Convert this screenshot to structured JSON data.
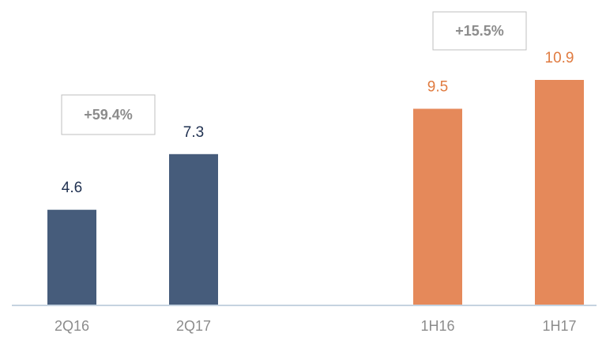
{
  "chart_data": {
    "type": "bar",
    "categories": [
      "2Q16",
      "2Q17",
      "1H16",
      "1H17"
    ],
    "values": [
      4.6,
      7.3,
      9.5,
      10.9
    ],
    "colors": [
      "#465c7b",
      "#465c7b",
      "#e5895a",
      "#e5895a"
    ],
    "label_colors": [
      "#1f3050",
      "#1f3050",
      "#e07b40",
      "#e07b40"
    ],
    "annotations": [
      "+59.4%",
      "+15.5%"
    ]
  }
}
